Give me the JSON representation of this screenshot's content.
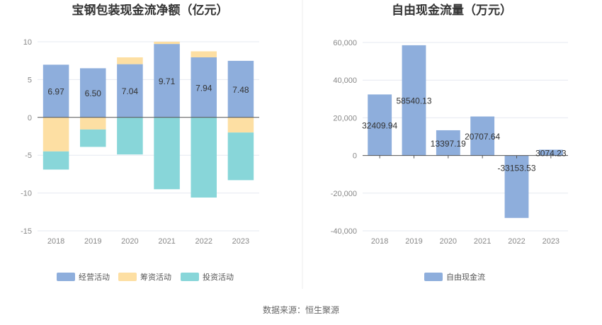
{
  "source_text": "数据来源：恒生聚源",
  "colors": {
    "operating": "#8eaedc",
    "financing": "#fddfa3",
    "investing": "#88d6d9",
    "fcf": "#8eaedc"
  },
  "chart_data": [
    {
      "type": "bar",
      "stacked": true,
      "title": "宝钢包装现金流净额（亿元）",
      "categories": [
        "2018",
        "2019",
        "2020",
        "2021",
        "2022",
        "2023"
      ],
      "ylim": [
        -15,
        10
      ],
      "yticks": [
        10,
        5,
        0,
        -5,
        -10,
        -15
      ],
      "grid": true,
      "legend_position": "bottom",
      "series": [
        {
          "name": "经营活动",
          "color_key": "operating",
          "values": [
            6.97,
            6.5,
            7.04,
            9.71,
            7.94,
            7.48
          ],
          "labeled": true
        },
        {
          "name": "筹资活动",
          "color_key": "financing",
          "values": [
            -4.5,
            -1.6,
            0.9,
            0.3,
            0.8,
            -2.0
          ]
        },
        {
          "name": "投资活动",
          "color_key": "investing",
          "values": [
            -2.4,
            -2.3,
            -4.9,
            -9.5,
            -10.6,
            -6.3
          ]
        }
      ],
      "data_labels": [
        "6.97",
        "6.50",
        "7.04",
        "9.71",
        "7.94",
        "7.48"
      ]
    },
    {
      "type": "bar",
      "title": "自由现金流量（万元）",
      "categories": [
        "2018",
        "2019",
        "2020",
        "2021",
        "2022",
        "2023"
      ],
      "ylim": [
        -40000,
        60000
      ],
      "yticks": [
        60000,
        40000,
        20000,
        0,
        -20000,
        -40000
      ],
      "ytick_labels": [
        "60,000",
        "40,000",
        "20,000",
        "0",
        "-20,000",
        "-40,000"
      ],
      "grid": true,
      "legend_position": "bottom",
      "series": [
        {
          "name": "自由现金流",
          "color_key": "fcf",
          "values": [
            32409.94,
            58540.13,
            13397.19,
            20707.64,
            -33153.53,
            3074.23
          ]
        }
      ],
      "data_labels": [
        "32409.94",
        "58540.13",
        "13397.19",
        "20707.64",
        "-33153.53",
        "3074.23"
      ]
    }
  ]
}
